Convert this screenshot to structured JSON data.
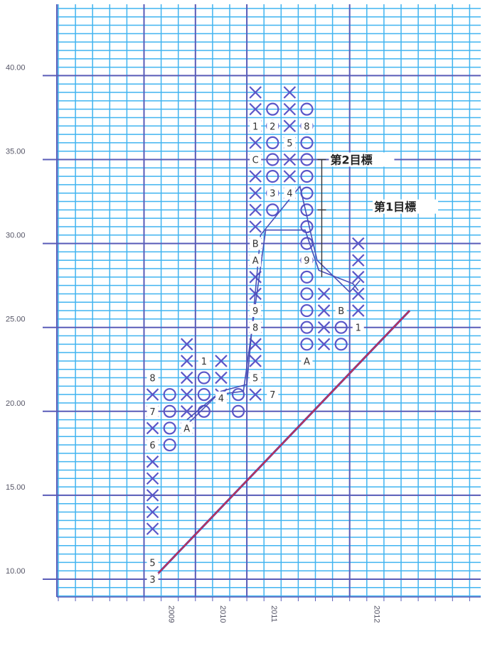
{
  "chart_data": {
    "type": "point-and-figure",
    "box_size": 1,
    "ylim": [
      7.5,
      44.5
    ],
    "y_ticks": [
      10,
      15,
      20,
      25,
      30,
      35,
      40
    ],
    "y_tick_labels": [
      "10.00",
      "15.00",
      "20.00",
      "25.00",
      "30.00",
      "35.00",
      "40.00"
    ],
    "x_ticks": [
      {
        "col": 1,
        "label": "2009"
      },
      {
        "col": 4,
        "label": "2010"
      },
      {
        "col": 7,
        "label": "2011"
      },
      {
        "col": 13,
        "label": "2012"
      }
    ],
    "columns": [
      {
        "col": 1,
        "type": "X",
        "from": 13,
        "to": 21
      },
      {
        "col": 2,
        "type": "O",
        "from": 18,
        "to": 21
      },
      {
        "col": 3,
        "type": "X",
        "from": 19,
        "to": 24
      },
      {
        "col": 4,
        "type": "O",
        "from": 20,
        "to": 22
      },
      {
        "col": 5,
        "type": "X",
        "from": 21,
        "to": 23
      },
      {
        "col": 6,
        "type": "O",
        "from": 20,
        "to": 21
      },
      {
        "col": 7,
        "type": "X",
        "from": 21,
        "to": 39
      },
      {
        "col": 8,
        "type": "O",
        "from": 32,
        "to": 38
      },
      {
        "col": 9,
        "type": "X",
        "from": 33,
        "to": 39
      },
      {
        "col": 10,
        "type": "O",
        "from": 24,
        "to": 38
      },
      {
        "col": 11,
        "type": "X",
        "from": 24,
        "to": 27
      },
      {
        "col": 12,
        "type": "O",
        "from": 24,
        "to": 25
      },
      {
        "col": 13,
        "type": "X",
        "from": 26,
        "to": 30
      }
    ],
    "month_markers": [
      {
        "col": 1,
        "y": 10,
        "label": "3"
      },
      {
        "col": 1,
        "y": 11,
        "label": "5"
      },
      {
        "col": 1,
        "y": 18,
        "label": "6"
      },
      {
        "col": 1,
        "y": 20,
        "label": "7"
      },
      {
        "col": 1,
        "y": 22,
        "label": "8"
      },
      {
        "col": 3,
        "y": 19,
        "label": "A"
      },
      {
        "col": 4,
        "y": 23,
        "label": "1"
      },
      {
        "col": 5,
        "y": 20.8,
        "label": "4"
      },
      {
        "col": 7,
        "y": 22,
        "label": "5"
      },
      {
        "col": 8,
        "y": 21,
        "label": "7"
      },
      {
        "col": 7,
        "y": 25,
        "label": "8"
      },
      {
        "col": 7,
        "y": 26,
        "label": "9"
      },
      {
        "col": 7,
        "y": 29,
        "label": "A"
      },
      {
        "col": 7,
        "y": 30,
        "label": "B"
      },
      {
        "col": 7,
        "y": 35,
        "label": "C"
      },
      {
        "col": 7,
        "y": 37,
        "label": "1"
      },
      {
        "col": 8,
        "y": 37,
        "label": "2"
      },
      {
        "col": 8,
        "y": 33,
        "label": "3"
      },
      {
        "col": 9,
        "y": 36,
        "label": "5"
      },
      {
        "col": 9,
        "y": 33,
        "label": "4"
      },
      {
        "col": 10,
        "y": 37,
        "label": "8"
      },
      {
        "col": 10,
        "y": 29,
        "label": "9"
      },
      {
        "col": 10,
        "y": 23,
        "label": "A"
      },
      {
        "col": 12,
        "y": 26,
        "label": "B"
      },
      {
        "col": 13,
        "y": 25,
        "label": "1"
      }
    ],
    "trendline": {
      "from": {
        "col": 1,
        "y": 10
      },
      "to": {
        "col": 16,
        "y": 26
      }
    },
    "projection_lines": [
      [
        {
          "col": 3.0,
          "y": 19.5
        },
        {
          "col": 5.0,
          "y": 21.2
        },
        {
          "col": 6.5,
          "y": 21.6
        },
        {
          "col": 7.3,
          "y": 30.5
        },
        {
          "col": 9.6,
          "y": 33.4
        },
        {
          "col": 10.6,
          "y": 29.0
        },
        {
          "col": 12.5,
          "y": 27.1
        },
        {
          "col": 13.1,
          "y": 27.8
        }
      ],
      [
        {
          "col": 3.0,
          "y": 19.2
        },
        {
          "col": 4.8,
          "y": 21.0
        },
        {
          "col": 6.3,
          "y": 21.2
        },
        {
          "col": 7.6,
          "y": 30.8
        },
        {
          "col": 9.9,
          "y": 30.8
        },
        {
          "col": 10.7,
          "y": 28.4
        },
        {
          "col": 12.7,
          "y": 27.6
        },
        {
          "col": 13.0,
          "y": 27.2
        }
      ]
    ],
    "targets": {
      "line_top": 35,
      "line_mid": 32,
      "line_bottom": 28,
      "target2_label": "第2目標",
      "target1_label": "第1目標"
    }
  }
}
